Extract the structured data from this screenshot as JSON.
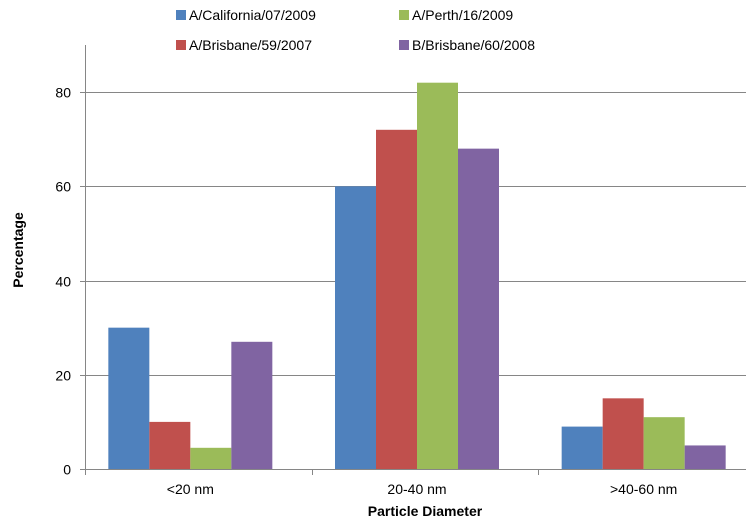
{
  "chart_data": {
    "type": "bar",
    "title": "",
    "xlabel": "Particle Diameter",
    "ylabel": "Percentage",
    "categories": [
      "<20 nm",
      "20-40 nm",
      ">40-60 nm"
    ],
    "ylim": [
      0,
      90
    ],
    "yticks": [
      0,
      20,
      40,
      60,
      80
    ],
    "grid": true,
    "legend_position": "top",
    "series": [
      {
        "name": "A/California/07/2009",
        "color": "#4f81bd",
        "values": [
          30,
          60,
          9
        ]
      },
      {
        "name": "A/Brisbane/59/2007",
        "color": "#c0504d",
        "values": [
          10,
          72,
          15
        ]
      },
      {
        "name": "A/Perth/16/2009",
        "color": "#9bbb59",
        "values": [
          4.5,
          82,
          11
        ]
      },
      {
        "name": "B/Brisbane/60/2008",
        "color": "#8064a2",
        "values": [
          27,
          68,
          5
        ]
      }
    ]
  }
}
